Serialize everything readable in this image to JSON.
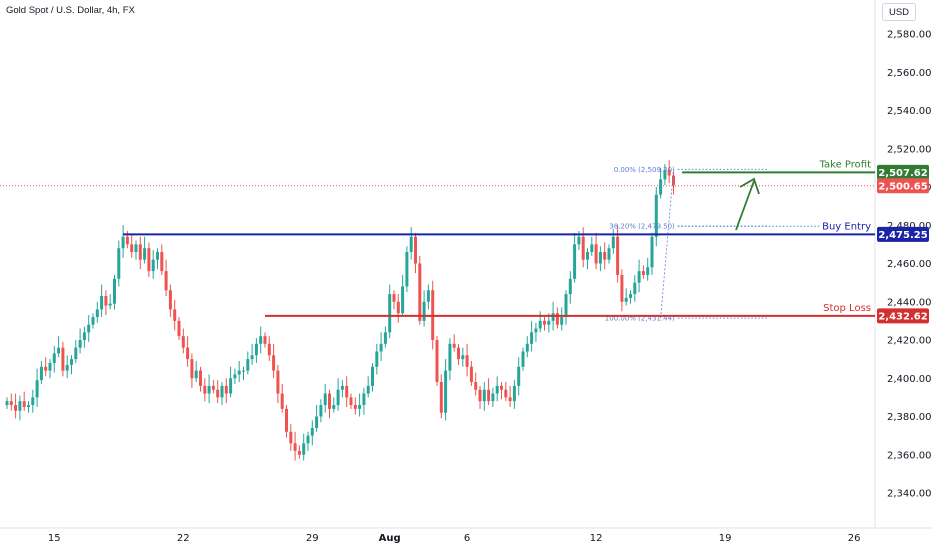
{
  "header": {
    "symbol_title": "Gold Spot / U.S. Dollar, 4h, FX",
    "currency": "USD"
  },
  "colors": {
    "up": "#26a69a",
    "down": "#ef5350",
    "take_profit": "#2e7d32",
    "buy_entry": "#1a24a8",
    "stop_loss": "#d32f2f",
    "fib": "#5b7fd6"
  },
  "chart_data": {
    "type": "candlestick",
    "title": "Gold Spot / U.S. Dollar, 4h, FX",
    "ylim": [
      2330,
      2595
    ],
    "y_ticks": [
      {
        "value": 2340,
        "label": "2,340.00"
      },
      {
        "value": 2360,
        "label": "2,360.00"
      },
      {
        "value": 2380,
        "label": "2,380.00"
      },
      {
        "value": 2400,
        "label": "2,400.00"
      },
      {
        "value": 2420,
        "label": "2,420.00"
      },
      {
        "value": 2440,
        "label": "2,440.00"
      },
      {
        "value": 2460,
        "label": "2,460.00"
      },
      {
        "value": 2480,
        "label": "2,480.00"
      },
      {
        "value": 2500,
        "label": "2,500.00"
      },
      {
        "value": 2520,
        "label": "2,520.00"
      },
      {
        "value": 2540,
        "label": "2,540.00"
      },
      {
        "value": 2560,
        "label": "2,560.00"
      },
      {
        "value": 2580,
        "label": "2,580.00"
      }
    ],
    "x_ticks": [
      {
        "index": 11,
        "label": "15",
        "bold": false
      },
      {
        "index": 41,
        "label": "22",
        "bold": false
      },
      {
        "index": 71,
        "label": "29",
        "bold": false
      },
      {
        "index": 89,
        "label": "Aug",
        "bold": true
      },
      {
        "index": 107,
        "label": "6",
        "bold": false
      },
      {
        "index": 137,
        "label": "12",
        "bold": false
      },
      {
        "index": 167,
        "label": "19",
        "bold": false
      },
      {
        "index": 197,
        "label": "26",
        "bold": false
      }
    ],
    "candles_close": [
      2388,
      2386,
      2383,
      2388,
      2385,
      2386,
      2390,
      2399,
      2406,
      2404,
      2408,
      2413,
      2416,
      2404,
      2407,
      2410,
      2416,
      2420,
      2424,
      2428,
      2432,
      2436,
      2443,
      2438,
      2439,
      2452,
      2468,
      2474,
      2470,
      2466,
      2470,
      2462,
      2468,
      2456,
      2462,
      2466,
      2456,
      2446,
      2436,
      2430,
      2422,
      2416,
      2410,
      2400,
      2404,
      2396,
      2392,
      2396,
      2394,
      2390,
      2396,
      2392,
      2400,
      2402,
      2404,
      2404,
      2410,
      2412,
      2418,
      2422,
      2418,
      2412,
      2404,
      2392,
      2384,
      2372,
      2366,
      2362,
      2360,
      2366,
      2370,
      2374,
      2380,
      2386,
      2392,
      2384,
      2386,
      2394,
      2396,
      2390,
      2386,
      2384,
      2386,
      2392,
      2396,
      2406,
      2414,
      2418,
      2424,
      2444,
      2440,
      2434,
      2448,
      2466,
      2474,
      2460,
      2430,
      2440,
      2446,
      2420,
      2398,
      2382,
      2404,
      2418,
      2416,
      2410,
      2412,
      2406,
      2398,
      2394,
      2388,
      2394,
      2388,
      2392,
      2396,
      2394,
      2390,
      2388,
      2396,
      2406,
      2414,
      2418,
      2424,
      2426,
      2430,
      2428,
      2430,
      2434,
      2428,
      2432,
      2444,
      2452,
      2470,
      2474,
      2462,
      2466,
      2470,
      2460,
      2466,
      2462,
      2468,
      2474,
      2454,
      2440,
      2442,
      2444,
      2450,
      2456,
      2454,
      2458,
      2474,
      2496,
      2504,
      2509,
      2506,
      2501
    ],
    "levels": [
      {
        "name": "Take Profit",
        "value": 2507.62,
        "label": "2,507.62"
      },
      {
        "name": "Buy Entry",
        "value": 2475.25,
        "label": "2,475.25"
      },
      {
        "name": "Stop Loss",
        "value": 2432.62,
        "label": "2,432.62"
      }
    ],
    "last_price": {
      "value": 2500.65,
      "label": "2,500.65"
    },
    "fib_labels": [
      {
        "value": 2509.2,
        "text": "0.00% (2,509.20)"
      },
      {
        "value": 2479.5,
        "text": "38.20% (2,479.50)"
      },
      {
        "value": 2431.44,
        "text": "100.00% (2,431.44)"
      }
    ]
  }
}
